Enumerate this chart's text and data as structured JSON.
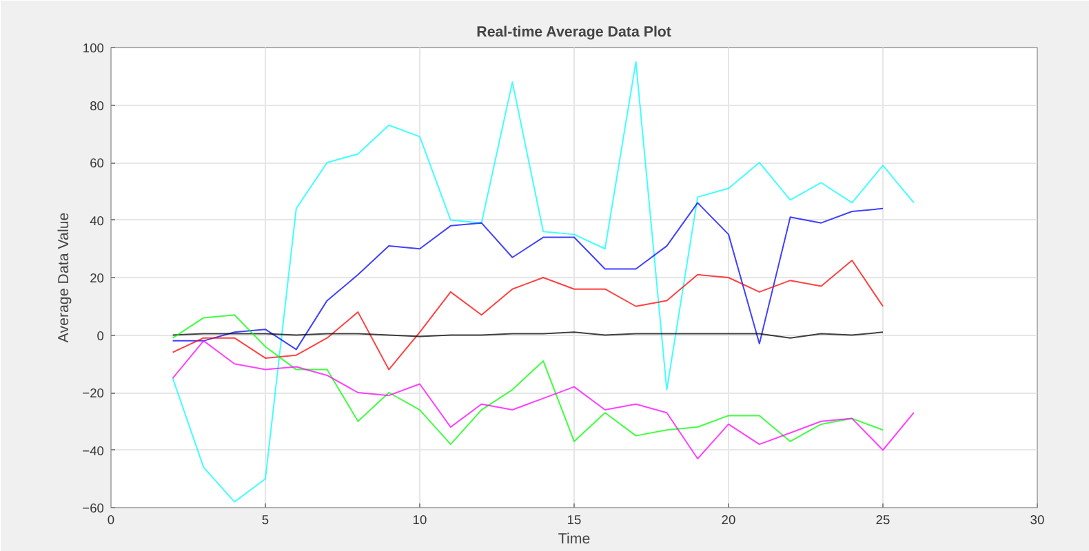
{
  "chart_data": {
    "type": "line",
    "title": "Real-time Average Data Plot",
    "xlabel": "Time",
    "ylabel": "Average Data Value",
    "xlim": [
      0,
      30
    ],
    "xticks": [
      0,
      5,
      10,
      15,
      20,
      25,
      30
    ],
    "ylim": [
      -60,
      100
    ],
    "yticks": [
      -60,
      -40,
      -20,
      0,
      20,
      40,
      60,
      80,
      100
    ],
    "grid": true,
    "series": [
      {
        "color": "#00ffff",
        "x": [
          2,
          3,
          4,
          5,
          6,
          7,
          8,
          9,
          10,
          11,
          12,
          13,
          14,
          15,
          16,
          17,
          18,
          19,
          20,
          21,
          22,
          23,
          24,
          25,
          26
        ],
        "values": [
          -15,
          -46,
          -58,
          -50,
          44,
          60,
          63,
          73,
          69,
          40,
          39,
          88,
          36,
          35,
          30,
          95,
          -19,
          48,
          51,
          60,
          47,
          53,
          46,
          59,
          46
        ]
      },
      {
        "color": "#0000ff",
        "x": [
          2,
          3,
          4,
          5,
          6,
          7,
          8,
          9,
          10,
          11,
          12,
          13,
          14,
          15,
          16,
          17,
          18,
          19,
          20,
          21,
          22,
          23,
          24,
          25
        ],
        "values": [
          -2,
          -2,
          1,
          2,
          -5,
          12,
          21,
          31,
          30,
          38,
          39,
          27,
          34,
          34,
          23,
          23,
          31,
          46,
          35,
          -3,
          41,
          39,
          43,
          44
        ]
      },
      {
        "color": "#ff0000",
        "x": [
          2,
          3,
          4,
          5,
          6,
          7,
          8,
          9,
          10,
          11,
          12,
          13,
          14,
          15,
          16,
          17,
          18,
          19,
          20,
          21,
          22,
          23,
          24,
          25
        ],
        "values": [
          -6,
          -1,
          -1,
          -8,
          -7,
          -1,
          8,
          -12,
          1,
          15,
          7,
          16,
          20,
          16,
          16,
          10,
          12,
          21,
          20,
          15,
          19,
          17,
          26,
          10
        ]
      },
      {
        "color": "#000000",
        "x": [
          2,
          3,
          4,
          5,
          6,
          7,
          8,
          9,
          10,
          11,
          12,
          13,
          14,
          15,
          16,
          17,
          18,
          19,
          20,
          21,
          22,
          23,
          24,
          25
        ],
        "values": [
          0,
          0.5,
          0.5,
          0.5,
          0,
          0.5,
          0.5,
          0,
          -0.5,
          0,
          0,
          0.5,
          0.5,
          1,
          0,
          0.5,
          0.5,
          0.5,
          0.5,
          0.5,
          -1,
          0.5,
          0,
          1
        ]
      },
      {
        "color": "#00ff00",
        "x": [
          2,
          3,
          4,
          5,
          6,
          7,
          8,
          9,
          10,
          11,
          12,
          13,
          14,
          15,
          16,
          17,
          18,
          19,
          20,
          21,
          22,
          23,
          24,
          25
        ],
        "values": [
          -1,
          6,
          7,
          -4,
          -12,
          -12,
          -30,
          -20,
          -26,
          -38,
          -26,
          -19,
          -9,
          -37,
          -27,
          -35,
          -33,
          -32,
          -28,
          -28,
          -37,
          -31,
          -29,
          -33
        ]
      },
      {
        "color": "#ff00ff",
        "x": [
          2,
          3,
          4,
          5,
          6,
          7,
          8,
          9,
          10,
          11,
          12,
          13,
          14,
          15,
          16,
          17,
          18,
          19,
          20,
          21,
          22,
          23,
          24,
          25,
          26
        ],
        "values": [
          -15,
          -2,
          -10,
          -12,
          -11,
          -14,
          -20,
          -21,
          -17,
          -32,
          -24,
          -26,
          -22,
          -18,
          -26,
          -24,
          -27,
          -43,
          -31,
          -38,
          -34,
          -30,
          -29,
          -40,
          -27
        ]
      }
    ]
  }
}
